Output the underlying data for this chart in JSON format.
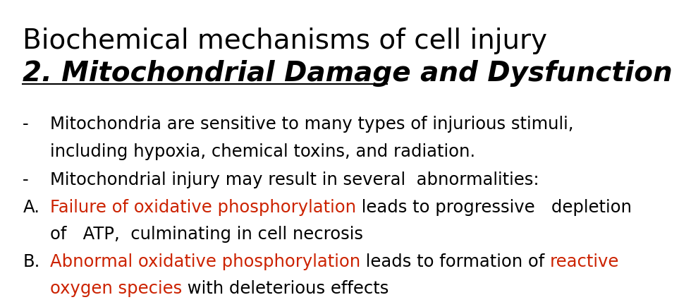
{
  "background_color": "#ffffff",
  "title_line1": "Biochemical mechanisms of cell injury",
  "title_line2": "2. Mitochondrial Damage and Dysfunction",
  "title_line1_color": "#000000",
  "title_line2_color": "#000000",
  "title_line1_fontsize": 28,
  "title_line2_fontsize": 28,
  "body_fontsize": 17.5,
  "body_color": "#000000",
  "red_color": "#cc2200",
  "bullet1_dash": "-",
  "bullet1_line1": "Mitochondria are sensitive to many types of injurious stimuli,",
  "bullet1_line2": "including hypoxia, chemical toxins, and radiation.",
  "bullet2_dash": "-",
  "bullet2_line1": "Mitochondrial injury may result in several  abnormalities:",
  "bulletA_label": "A.",
  "bulletA_red": "Failure of oxidative phosphorylation",
  "bulletA_black1": " leads to progressive   depletion",
  "bulletA_line2": "of   ATP,  culminating in cell necrosis",
  "bulletB_label": "B.",
  "bulletB_red1": "Abnormal oxidative phosphorylation",
  "bulletB_black1": " leads to formation of ",
  "bulletB_red2": "reactive",
  "bulletB_line2_red": "oxygen species",
  "bulletB_line2_black": " with deleterious effects"
}
